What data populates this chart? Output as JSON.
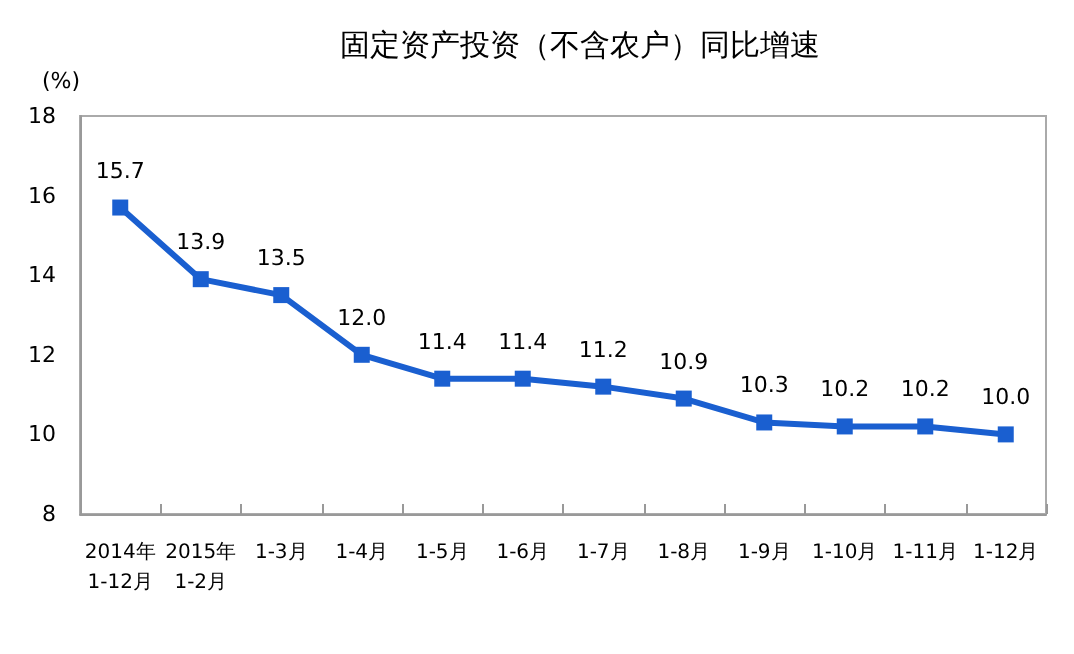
{
  "chart_data": {
    "type": "line",
    "title": "固定资产投资（不含农户）同比增速",
    "ylabel": "(%)",
    "categories": [
      "2014年\n1-12月",
      "2015年\n1-2月",
      "1-3月",
      "1-4月",
      "1-5月",
      "1-6月",
      "1-7月",
      "1-8月",
      "1-9月",
      "1-10月",
      "1-11月",
      "1-12月"
    ],
    "series": [
      {
        "color": "#1a5fd0",
        "values": [
          15.7,
          13.9,
          13.5,
          12.0,
          11.4,
          11.4,
          11.2,
          10.9,
          10.3,
          10.2,
          10.2,
          10.0
        ],
        "value_labels": [
          "15.7",
          "13.9",
          "13.5",
          "12.0",
          "11.4",
          "11.4",
          "11.2",
          "10.9",
          "10.3",
          "10.2",
          "10.2",
          "10.0"
        ]
      }
    ],
    "ylim": [
      8,
      18
    ],
    "yticks": [
      8,
      10,
      12,
      14,
      16,
      18
    ],
    "grid": false,
    "marker": "square",
    "line_style": "solid"
  }
}
